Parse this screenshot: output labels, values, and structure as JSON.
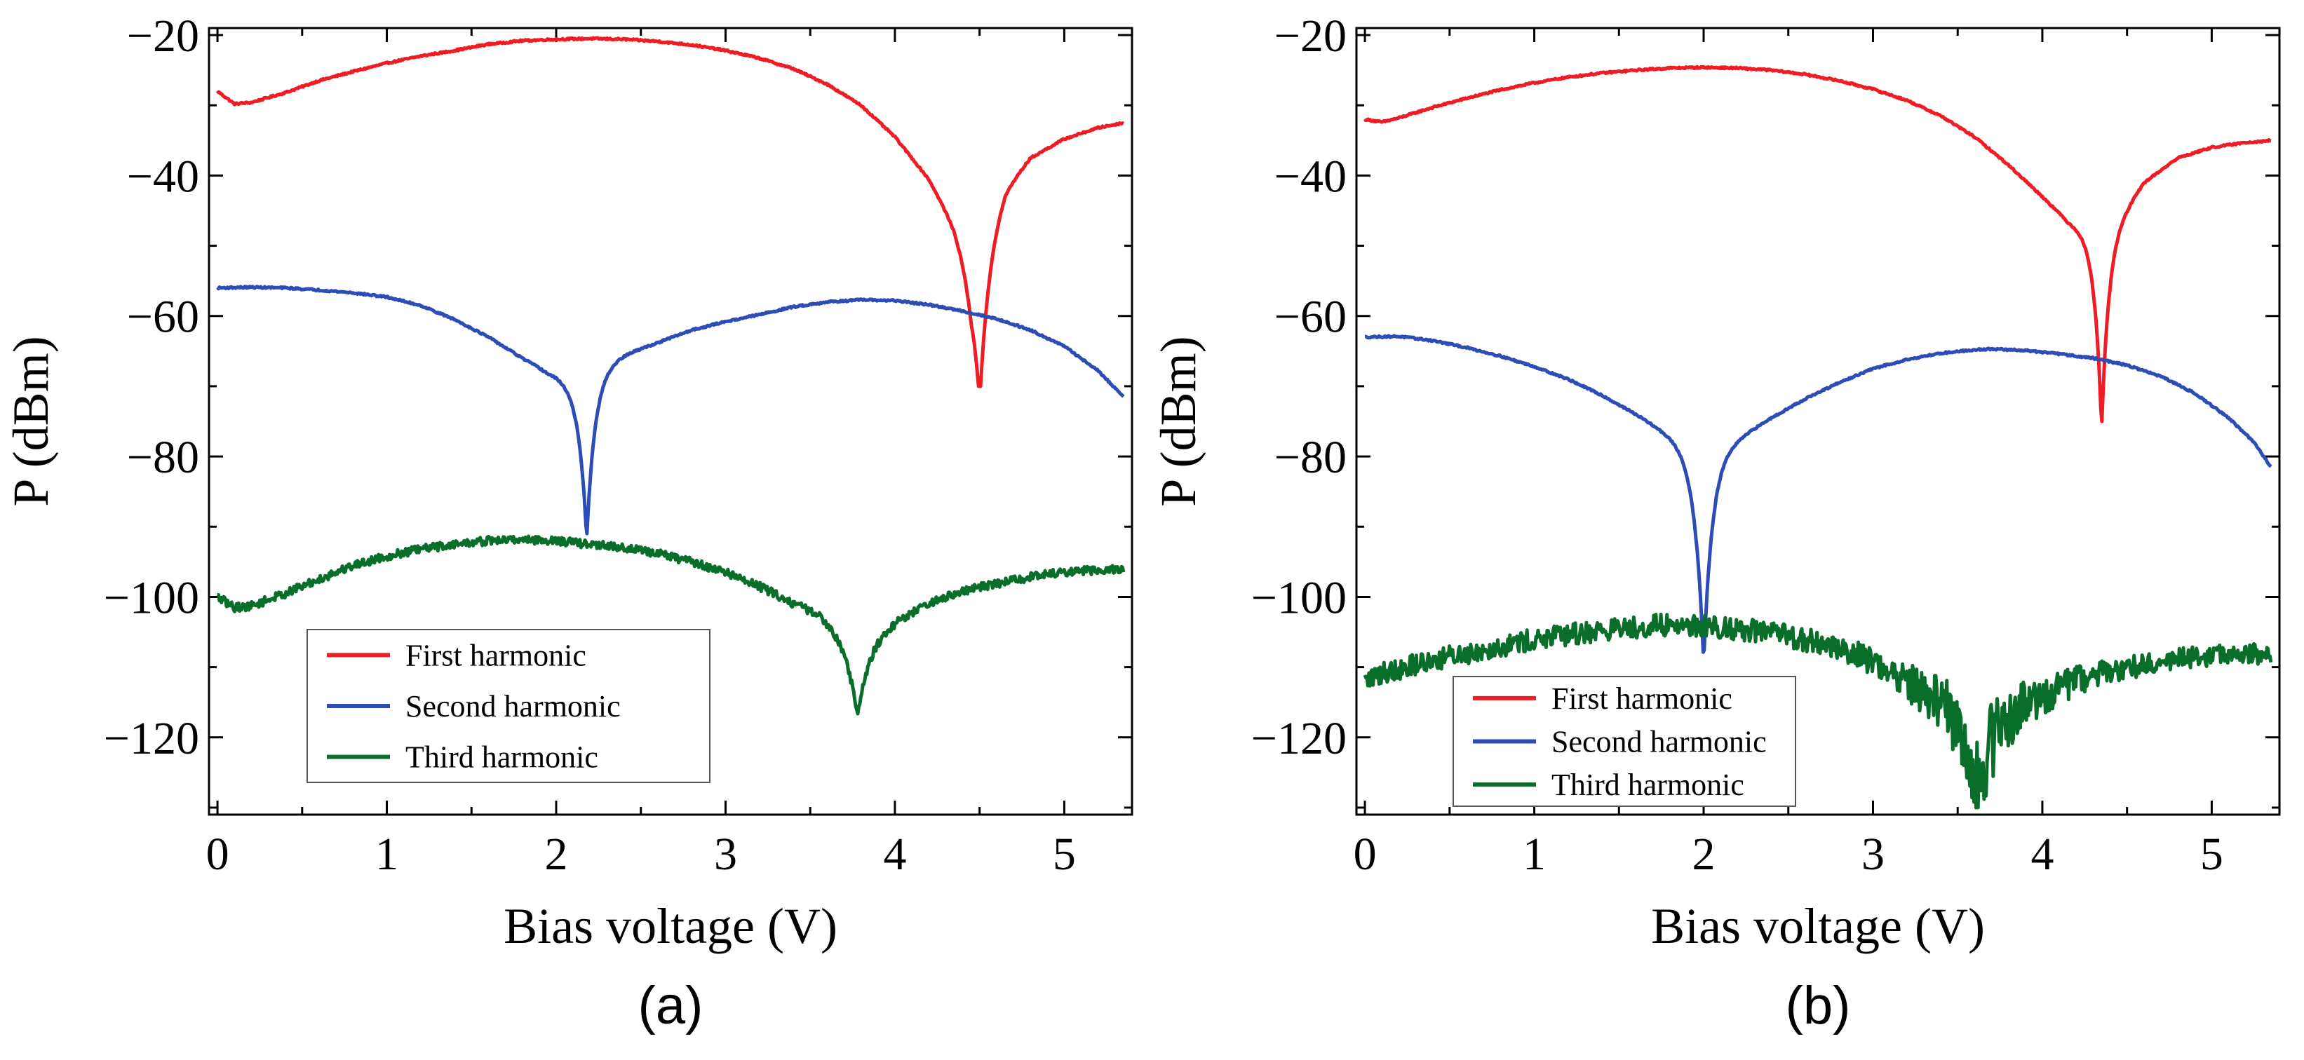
{
  "colors": {
    "first": "#ee1c25",
    "second": "#2b4db5",
    "third": "#0a6e2b",
    "axis": "#000000"
  },
  "chart_data": [
    {
      "panel_label": "(a)",
      "type": "line",
      "xlabel": "Bias voltage (V)",
      "ylabel": "P (dBm)",
      "xlim": [
        -0.05,
        5.4
      ],
      "ylim": [
        -131,
        -19
      ],
      "x_ticks": [
        0,
        1,
        2,
        3,
        4,
        5
      ],
      "x_tick_labels": [
        "0",
        "1",
        "2",
        "3",
        "4",
        "5"
      ],
      "y_ticks": [
        -20,
        -40,
        -60,
        -80,
        -100,
        -120
      ],
      "y_tick_labels": [
        "−20",
        "−40",
        "−60",
        "−80",
        "−100",
        "−120"
      ],
      "legend": [
        "First harmonic",
        "Second harmonic",
        "Third harmonic"
      ],
      "legend_location": "lower-left",
      "series": [
        {
          "name": "First harmonic",
          "color_key": "first",
          "dip": {
            "at": 4.5,
            "width": 0.05,
            "depth": 22,
            "value": -70
          },
          "points": [
            [
              0.0,
              -28
            ],
            [
              0.1,
              -29.8
            ],
            [
              0.2,
              -29.6
            ],
            [
              0.4,
              -28.2
            ],
            [
              0.6,
              -26.5
            ],
            [
              0.8,
              -25.2
            ],
            [
              1.0,
              -24
            ],
            [
              1.2,
              -23
            ],
            [
              1.4,
              -22.2
            ],
            [
              1.6,
              -21.3
            ],
            [
              1.8,
              -20.8
            ],
            [
              2.0,
              -20.6
            ],
            [
              2.2,
              -20.5
            ],
            [
              2.4,
              -20.6
            ],
            [
              2.6,
              -20.9
            ],
            [
              2.8,
              -21.4
            ],
            [
              3.0,
              -22.2
            ],
            [
              3.2,
              -23.3
            ],
            [
              3.4,
              -24.8
            ],
            [
              3.6,
              -27
            ],
            [
              3.8,
              -30
            ],
            [
              4.0,
              -34.5
            ],
            [
              4.2,
              -40.5
            ],
            [
              4.35,
              -47
            ],
            [
              4.45,
              -53
            ],
            [
              4.55,
              -48.5
            ],
            [
              4.65,
              -42
            ],
            [
              4.8,
              -37.5
            ],
            [
              5.0,
              -34.8
            ],
            [
              5.2,
              -33.2
            ],
            [
              5.35,
              -32.5
            ]
          ]
        },
        {
          "name": "Second harmonic",
          "color_key": "second",
          "dip": {
            "at": 2.18,
            "width": 0.05,
            "depth": 24,
            "value": -92
          },
          "points": [
            [
              0.0,
              -56
            ],
            [
              0.2,
              -55.9
            ],
            [
              0.4,
              -56
            ],
            [
              0.6,
              -56.3
            ],
            [
              0.8,
              -56.7
            ],
            [
              1.0,
              -57.3
            ],
            [
              1.2,
              -58.5
            ],
            [
              1.4,
              -60.5
            ],
            [
              1.6,
              -63
            ],
            [
              1.8,
              -66
            ],
            [
              1.95,
              -68
            ],
            [
              2.05,
              -68.5
            ],
            [
              2.1,
              -68.5
            ],
            [
              2.25,
              -67
            ],
            [
              2.4,
              -65.5
            ],
            [
              2.6,
              -63.8
            ],
            [
              2.8,
              -62
            ],
            [
              3.0,
              -60.8
            ],
            [
              3.2,
              -59.8
            ],
            [
              3.4,
              -58.7
            ],
            [
              3.6,
              -58
            ],
            [
              3.8,
              -57.7
            ],
            [
              4.0,
              -57.8
            ],
            [
              4.2,
              -58.4
            ],
            [
              4.4,
              -59.3
            ],
            [
              4.6,
              -60.4
            ],
            [
              4.8,
              -62
            ],
            [
              5.0,
              -64.3
            ],
            [
              5.2,
              -67.8
            ],
            [
              5.35,
              -71.5
            ]
          ]
        },
        {
          "name": "Third harmonic",
          "color_key": "third",
          "dip": {
            "at": 3.78,
            "width": 0.08,
            "depth": 13,
            "value": -117
          },
          "points": [
            [
              0.0,
              -100
            ],
            [
              0.1,
              -101.5
            ],
            [
              0.2,
              -101.3
            ],
            [
              0.4,
              -99.5
            ],
            [
              0.6,
              -97.5
            ],
            [
              0.8,
              -95.5
            ],
            [
              1.0,
              -94.2
            ],
            [
              1.2,
              -93.2
            ],
            [
              1.4,
              -92.5
            ],
            [
              1.6,
              -92
            ],
            [
              1.8,
              -91.8
            ],
            [
              2.0,
              -92
            ],
            [
              2.2,
              -92.5
            ],
            [
              2.4,
              -93
            ],
            [
              2.6,
              -93.8
            ],
            [
              2.8,
              -95
            ],
            [
              3.0,
              -96.5
            ],
            [
              3.2,
              -98.5
            ],
            [
              3.4,
              -100.8
            ],
            [
              3.55,
              -102
            ],
            [
              3.65,
              -103
            ],
            [
              3.75,
              -104
            ],
            [
              3.85,
              -104
            ],
            [
              3.95,
              -103.5
            ],
            [
              4.1,
              -102
            ],
            [
              4.3,
              -100
            ],
            [
              4.5,
              -98.6
            ],
            [
              4.7,
              -97.6
            ],
            [
              4.9,
              -96.8
            ],
            [
              5.1,
              -96.3
            ],
            [
              5.35,
              -96
            ]
          ]
        }
      ]
    },
    {
      "panel_label": "(b)",
      "type": "line",
      "xlabel": "Bias voltage (V)",
      "ylabel": "P (dBm)",
      "xlim": [
        -0.05,
        5.4
      ],
      "ylim": [
        -131,
        -19
      ],
      "x_ticks": [
        0,
        1,
        2,
        3,
        4,
        5
      ],
      "x_tick_labels": [
        "0",
        "1",
        "2",
        "3",
        "4",
        "5"
      ],
      "y_ticks": [
        -20,
        -40,
        -60,
        -80,
        -100,
        -120
      ],
      "y_tick_labels": [
        "−20",
        "−40",
        "−60",
        "−80",
        "−100",
        "−120"
      ],
      "legend": [
        "First harmonic",
        "Second harmonic",
        "Third harmonic"
      ],
      "legend_location": "lower-left",
      "series": [
        {
          "name": "First harmonic",
          "color_key": "first",
          "dip": {
            "at": 4.35,
            "width": 0.04,
            "depth": 28,
            "value": -75
          },
          "points": [
            [
              0.0,
              -32
            ],
            [
              0.1,
              -32.4
            ],
            [
              0.2,
              -31.8
            ],
            [
              0.4,
              -30.3
            ],
            [
              0.6,
              -29
            ],
            [
              0.8,
              -27.8
            ],
            [
              1.0,
              -26.8
            ],
            [
              1.2,
              -26
            ],
            [
              1.4,
              -25.4
            ],
            [
              1.6,
              -25
            ],
            [
              1.8,
              -24.7
            ],
            [
              2.0,
              -24.6
            ],
            [
              2.2,
              -24.7
            ],
            [
              2.4,
              -25
            ],
            [
              2.6,
              -25.6
            ],
            [
              2.8,
              -26.5
            ],
            [
              3.0,
              -27.7
            ],
            [
              3.2,
              -29.3
            ],
            [
              3.4,
              -31.5
            ],
            [
              3.6,
              -34.5
            ],
            [
              3.8,
              -38.5
            ],
            [
              4.0,
              -43
            ],
            [
              4.15,
              -46.5
            ],
            [
              4.3,
              -48.5
            ],
            [
              4.4,
              -48
            ],
            [
              4.5,
              -44.5
            ],
            [
              4.6,
              -41
            ],
            [
              4.8,
              -37.5
            ],
            [
              5.0,
              -36
            ],
            [
              5.2,
              -35.3
            ],
            [
              5.35,
              -35
            ]
          ]
        },
        {
          "name": "Second harmonic",
          "color_key": "second",
          "dip": {
            "at": 2.0,
            "width": 0.05,
            "depth": 30,
            "value": -110
          },
          "points": [
            [
              0.0,
              -63
            ],
            [
              0.2,
              -62.9
            ],
            [
              0.4,
              -63.5
            ],
            [
              0.6,
              -64.5
            ],
            [
              0.8,
              -65.7
            ],
            [
              1.0,
              -67.2
            ],
            [
              1.2,
              -69
            ],
            [
              1.4,
              -71.3
            ],
            [
              1.6,
              -74
            ],
            [
              1.8,
              -77
            ],
            [
              1.95,
              -79.5
            ],
            [
              2.05,
              -79.5
            ],
            [
              2.2,
              -77.5
            ],
            [
              2.4,
              -74.5
            ],
            [
              2.6,
              -71.8
            ],
            [
              2.8,
              -69.5
            ],
            [
              3.0,
              -67.5
            ],
            [
              3.2,
              -66.2
            ],
            [
              3.4,
              -65.3
            ],
            [
              3.6,
              -64.8
            ],
            [
              3.7,
              -64.7
            ],
            [
              3.9,
              -64.9
            ],
            [
              4.1,
              -65.4
            ],
            [
              4.3,
              -66
            ],
            [
              4.5,
              -67
            ],
            [
              4.7,
              -68.6
            ],
            [
              4.9,
              -71
            ],
            [
              5.1,
              -74.5
            ],
            [
              5.25,
              -78
            ],
            [
              5.35,
              -81.5
            ]
          ]
        },
        {
          "name": "Third harmonic",
          "color_key": "third",
          "dip": {
            "at": 3.62,
            "width": 0.07,
            "depth": 12,
            "value": -130
          },
          "points": [
            [
              0.0,
              -112
            ],
            [
              0.1,
              -110.8
            ],
            [
              0.3,
              -109.6
            ],
            [
              0.5,
              -108.5
            ],
            [
              0.7,
              -107.5
            ],
            [
              0.9,
              -106.5
            ],
            [
              1.1,
              -105.8
            ],
            [
              1.3,
              -105.1
            ],
            [
              1.5,
              -104.5
            ],
            [
              1.7,
              -104.1
            ],
            [
              1.9,
              -104
            ],
            [
              2.1,
              -104.3
            ],
            [
              2.3,
              -104.8
            ],
            [
              2.5,
              -105.6
            ],
            [
              2.7,
              -106.7
            ],
            [
              2.9,
              -108
            ],
            [
              3.1,
              -110.5
            ],
            [
              3.3,
              -113.5
            ],
            [
              3.45,
              -115.5
            ],
            [
              3.55,
              -116.5
            ],
            [
              3.7,
              -117
            ],
            [
              3.8,
              -116.5
            ],
            [
              3.9,
              -115
            ],
            [
              4.0,
              -114
            ],
            [
              4.2,
              -112
            ],
            [
              4.4,
              -110.5
            ],
            [
              4.6,
              -109.5
            ],
            [
              4.8,
              -109
            ],
            [
              5.0,
              -108.3
            ],
            [
              5.2,
              -108.2
            ],
            [
              5.35,
              -108.5
            ]
          ]
        }
      ]
    }
  ]
}
